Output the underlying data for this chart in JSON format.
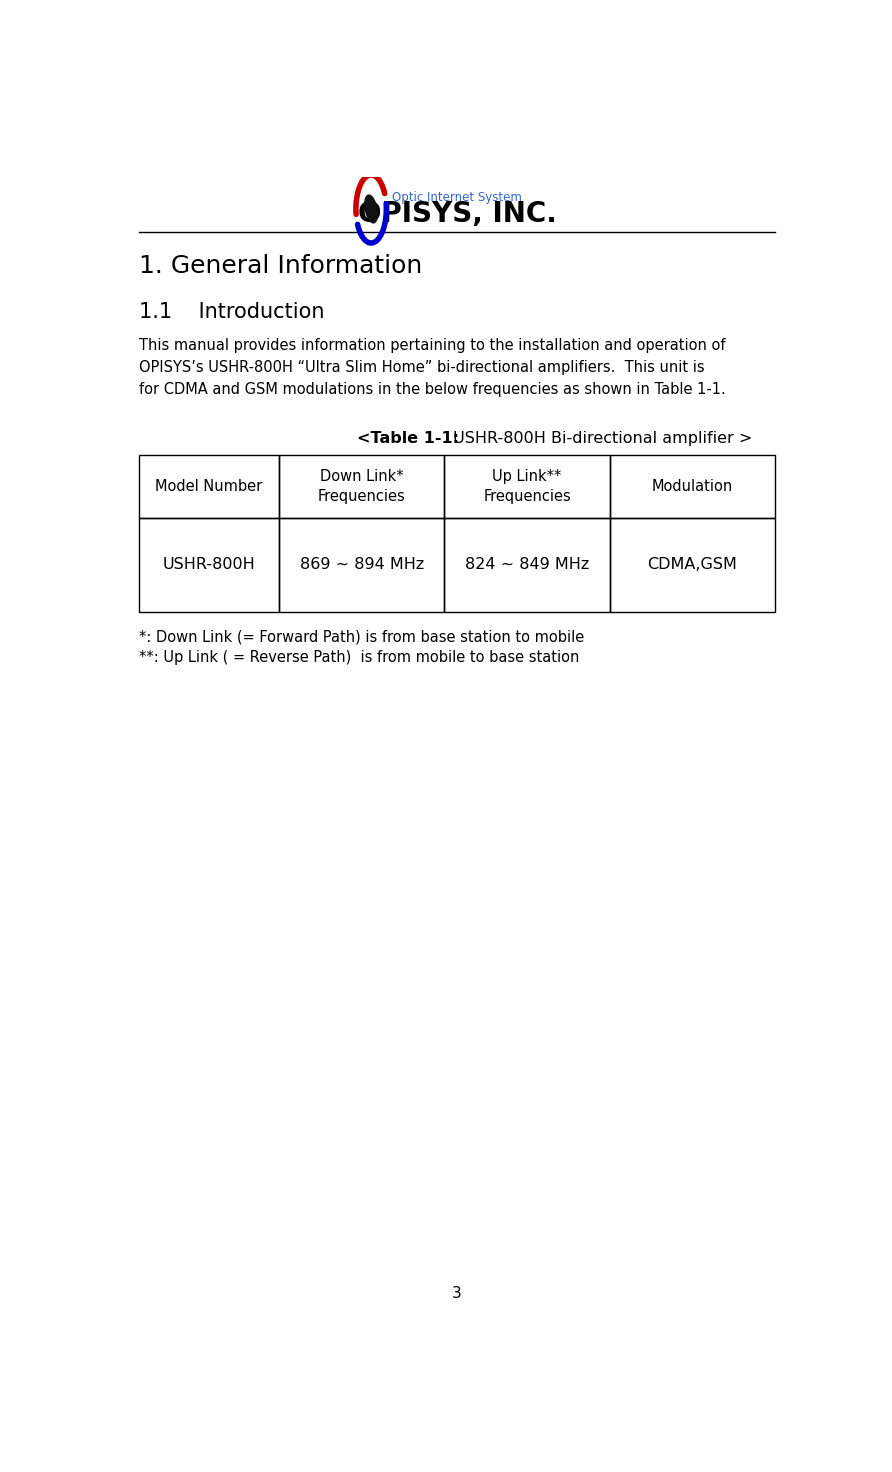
{
  "bg_color": "#ffffff",
  "page_width": 8.92,
  "page_height": 14.72,
  "logo_text_top": "Optic Internet System",
  "logo_text_main": "OPISYS, INC.",
  "logo_color_main": "#000000",
  "logo_color_top": "#3366cc",
  "heading1": "1. General Information",
  "heading2": "1.1    Introduction",
  "body_text": "This manual provides information pertaining to the installation and operation of\nOPISYS’s USHR-800H “Ultra Slim Home” bi-directional amplifiers.  This unit is\nfor CDMA and GSM modulations in the below frequencies as shown in Table 1-1.",
  "table_caption_bold": "<Table 1-1:",
  "table_caption_normal": " USHR-800H Bi-directional amplifier >",
  "table_headers": [
    "Model Number",
    "Down Link*\nFrequencies",
    "Up Link**\nFrequencies",
    "Modulation"
  ],
  "table_row": [
    "USHR-800H",
    "869 ~ 894 MHz",
    "824 ~ 849 MHz",
    "CDMA,GSM"
  ],
  "footnote1": "*: Down Link (= Forward Path) is from base station to mobile",
  "footnote2": "**: Up Link ( = Reverse Path)  is from mobile to base station",
  "page_number": "3",
  "swirl_red": "#cc0000",
  "swirl_blue": "#0000cc",
  "swirl_center": "#111111"
}
